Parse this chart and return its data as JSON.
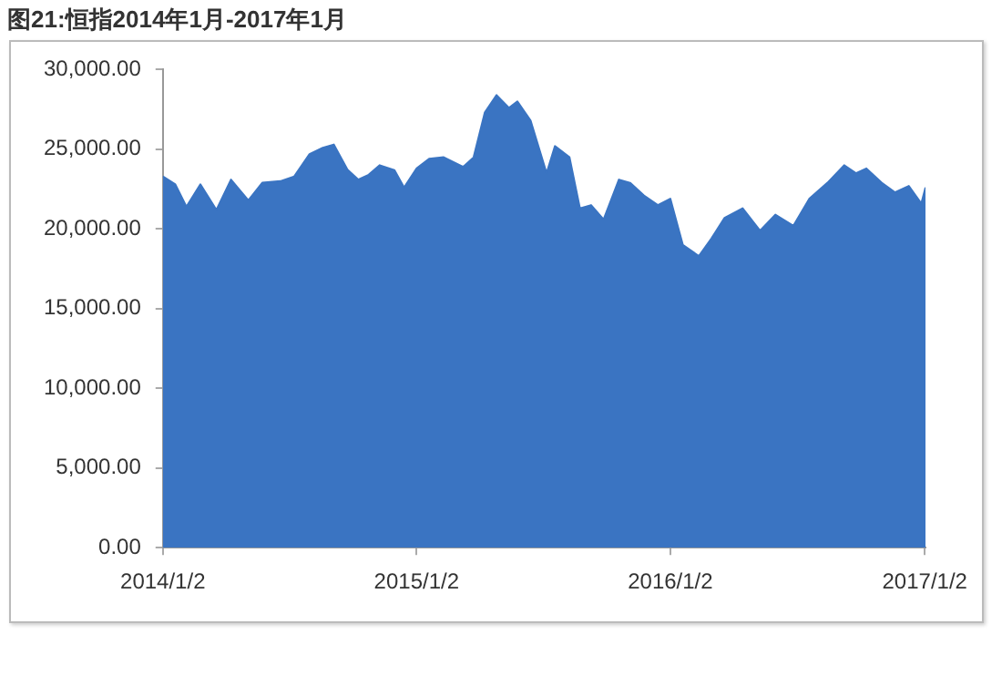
{
  "chart_data": {
    "type": "area",
    "title": "图21:恒指2014年1月-2017年1月",
    "x": [
      "2014-01-02",
      "2014-01-20",
      "2014-02-05",
      "2014-02-25",
      "2014-03-20",
      "2014-04-10",
      "2014-05-05",
      "2014-05-25",
      "2014-06-20",
      "2014-07-10",
      "2014-08-01",
      "2014-08-20",
      "2014-09-05",
      "2014-09-25",
      "2014-10-10",
      "2014-10-25",
      "2014-11-10",
      "2014-12-01",
      "2014-12-15",
      "2015-01-02",
      "2015-01-20",
      "2015-02-10",
      "2015-03-10",
      "2015-03-25",
      "2015-04-10",
      "2015-04-27",
      "2015-05-15",
      "2015-05-27",
      "2015-06-15",
      "2015-07-08",
      "2015-07-20",
      "2015-08-10",
      "2015-08-25",
      "2015-09-10",
      "2015-09-28",
      "2015-10-20",
      "2015-11-05",
      "2015-11-25",
      "2015-12-15",
      "2016-01-02",
      "2016-01-20",
      "2016-02-12",
      "2016-03-01",
      "2016-03-20",
      "2016-04-15",
      "2016-05-10",
      "2016-06-01",
      "2016-06-27",
      "2016-07-20",
      "2016-08-15",
      "2016-09-08",
      "2016-09-25",
      "2016-10-10",
      "2016-11-01",
      "2016-11-20",
      "2016-12-10",
      "2016-12-28",
      "2017-01-03"
    ],
    "series": [
      {
        "color": "#3a74c2",
        "values": [
          23300,
          22800,
          21400,
          22800,
          21200,
          23100,
          21800,
          22900,
          23000,
          23300,
          24700,
          25100,
          25300,
          23700,
          23100,
          23400,
          24000,
          23700,
          22600,
          23800,
          24400,
          24500,
          23900,
          24500,
          27300,
          28400,
          27600,
          28000,
          26800,
          23500,
          25200,
          24500,
          21300,
          21500,
          20600,
          23100,
          22900,
          22100,
          21500,
          21900,
          19000,
          18300,
          19400,
          20700,
          21300,
          19900,
          20900,
          20200,
          21900,
          22900,
          24000,
          23500,
          23800,
          22900,
          22300,
          22700,
          21600,
          22600
        ]
      }
    ],
    "xlim": [
      "2014-01-02",
      "2017-01-03"
    ],
    "xticks": [
      {
        "value": "2014-01-02",
        "label": "2014/1/2"
      },
      {
        "value": "2015-01-02",
        "label": "2015/1/2"
      },
      {
        "value": "2016-01-02",
        "label": "2016/1/2"
      },
      {
        "value": "2017-01-02",
        "label": "2017/1/2"
      }
    ],
    "ylim": [
      0,
      30000
    ],
    "yticks": [
      {
        "value": 0,
        "label": "0.00"
      },
      {
        "value": 5000,
        "label": "5,000.00"
      },
      {
        "value": 10000,
        "label": "10,000.00"
      },
      {
        "value": 15000,
        "label": "15,000.00"
      },
      {
        "value": 20000,
        "label": "20,000.00"
      },
      {
        "value": 25000,
        "label": "25,000.00"
      },
      {
        "value": 30000,
        "label": "30,000.00"
      }
    ],
    "grid": false,
    "legend": false
  }
}
